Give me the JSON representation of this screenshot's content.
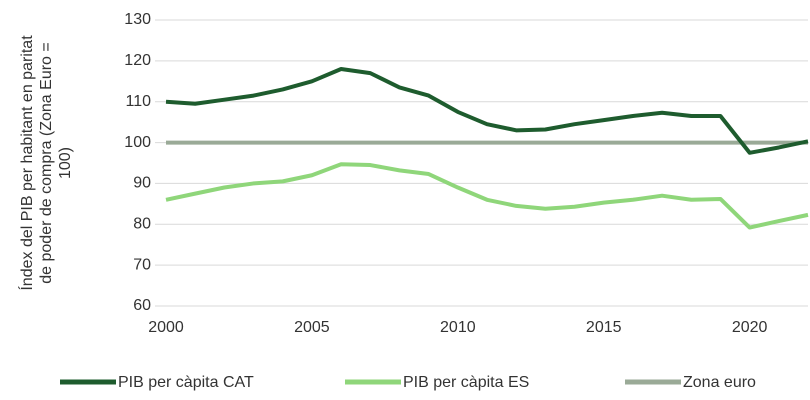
{
  "chart_data": {
    "type": "line",
    "ylabel": [
      "Índex del PIB per habitant en paritat",
      "de poder de compra (Zona Euro =",
      "100)"
    ],
    "x": [
      2000,
      2001,
      2002,
      2003,
      2004,
      2005,
      2006,
      2007,
      2008,
      2009,
      2010,
      2011,
      2012,
      2013,
      2014,
      2015,
      2016,
      2017,
      2018,
      2019,
      2020,
      2021,
      2022
    ],
    "series": [
      {
        "name": "PIB per càpita CAT",
        "color": "#1e5c2e",
        "values": [
          110,
          109.5,
          110.5,
          111.5,
          113,
          115,
          118,
          117,
          113.5,
          111.5,
          107.5,
          104.5,
          103,
          103.2,
          104.5,
          105.5,
          106.5,
          107.3,
          106.5,
          106.5,
          97.5,
          98.8,
          100.3
        ]
      },
      {
        "name": "PIB per càpita ES",
        "color": "#8fd67a",
        "values": [
          86,
          87.5,
          89,
          90,
          90.5,
          92,
          94.7,
          94.5,
          93.2,
          92.3,
          89,
          86,
          84.5,
          83.8,
          84.3,
          85.3,
          86,
          87,
          86,
          86.2,
          79.2,
          80.8,
          82.3
        ]
      },
      {
        "name": "Zona euro",
        "color": "#9aaa97",
        "values": [
          100,
          100,
          100,
          100,
          100,
          100,
          100,
          100,
          100,
          100,
          100,
          100,
          100,
          100,
          100,
          100,
          100,
          100,
          100,
          100,
          100,
          100,
          100
        ]
      }
    ],
    "xlim": [
      2000,
      2022
    ],
    "xticks": [
      2000,
      2005,
      2010,
      2015,
      2020
    ],
    "ylim": [
      60,
      130
    ],
    "yticks": [
      60,
      70,
      80,
      90,
      100,
      110,
      120,
      130
    ],
    "grid": true,
    "legend": "bottom"
  }
}
